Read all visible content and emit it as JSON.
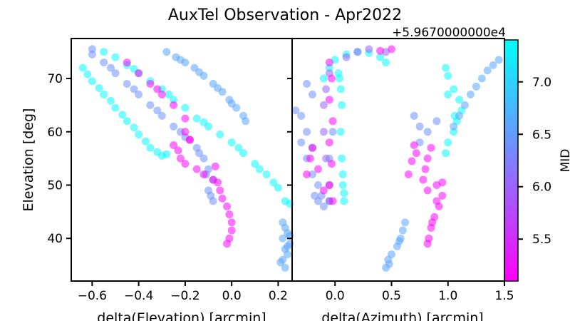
{
  "figure": {
    "title": "AuxTel Observation - Apr2022"
  },
  "chart_data": [
    {
      "type": "scatter",
      "xlabel": "delta(Elevation) [arcmin]",
      "ylabel": "Elevation [deg]",
      "xlim": [
        -0.69,
        0.26
      ],
      "ylim": [
        32,
        77.5
      ],
      "xticks": [
        -0.6,
        -0.4,
        -0.2,
        0.0,
        0.2
      ],
      "xtick_labels": [
        "−0.6",
        "−0.4",
        "−0.2",
        "0.0",
        "0.2"
      ],
      "yticks": [
        40,
        50,
        60,
        70
      ],
      "ytick_labels": [
        "40",
        "50",
        "60",
        "70"
      ],
      "series": [
        {
          "color_value": 7.35,
          "points": [
            [
              -0.64,
              72
            ],
            [
              -0.6,
              69.5
            ],
            [
              -0.55,
              67
            ],
            [
              -0.5,
              64.5
            ],
            [
              -0.45,
              62
            ],
            [
              -0.4,
              59.5
            ],
            [
              -0.35,
              57
            ],
            [
              -0.3,
              55.5
            ],
            [
              -0.62,
              70.8
            ],
            [
              -0.57,
              68.2
            ],
            [
              -0.52,
              65.8
            ],
            [
              -0.47,
              63.2
            ],
            [
              -0.42,
              60.8
            ],
            [
              -0.37,
              58.2
            ],
            [
              -0.32,
              56.2
            ],
            [
              -0.28,
              55.8
            ]
          ]
        },
        {
          "color_value": 7.35,
          "points": [
            [
              -0.55,
              75
            ],
            [
              -0.5,
              74
            ],
            [
              -0.45,
              72.5
            ],
            [
              -0.4,
              71
            ],
            [
              -0.35,
              69.5
            ],
            [
              -0.3,
              68
            ],
            [
              -0.25,
              66
            ],
            [
              -0.2,
              64.5
            ],
            [
              -0.15,
              62.5
            ],
            [
              -0.1,
              61
            ],
            [
              -0.05,
              59.5
            ],
            [
              0.0,
              58
            ],
            [
              0.05,
              56
            ],
            [
              0.1,
              54
            ],
            [
              0.15,
              52
            ],
            [
              0.2,
              49.5
            ],
            [
              0.23,
              47
            ],
            [
              0.25,
              46.5
            ],
            [
              -0.42,
              71.8
            ],
            [
              -0.27,
              67
            ],
            [
              -0.12,
              61.8
            ],
            [
              0.03,
              57
            ],
            [
              0.12,
              53
            ],
            [
              0.18,
              50.5
            ]
          ]
        },
        {
          "color_value": 6.6,
          "points": [
            [
              -0.28,
              75
            ],
            [
              -0.24,
              74
            ],
            [
              -0.2,
              73
            ],
            [
              -0.16,
              72
            ],
            [
              -0.12,
              70.5
            ],
            [
              -0.08,
              69
            ],
            [
              -0.04,
              67.5
            ],
            [
              -0.01,
              66
            ],
            [
              0.02,
              64.5
            ],
            [
              0.05,
              63
            ],
            [
              0.06,
              62
            ],
            [
              -0.22,
              73.5
            ],
            [
              -0.14,
              71.2
            ],
            [
              -0.06,
              68.2
            ],
            [
              0.0,
              65.3
            ]
          ]
        },
        {
          "color_value": 6.4,
          "points": [
            [
              -0.6,
              74.5
            ],
            [
              -0.55,
              73
            ],
            [
              -0.5,
              71
            ],
            [
              -0.45,
              69
            ],
            [
              -0.4,
              67
            ],
            [
              -0.35,
              65
            ],
            [
              -0.3,
              63
            ],
            [
              -0.25,
              61
            ],
            [
              -0.2,
              59
            ],
            [
              -0.15,
              57
            ],
            [
              -0.12,
              55
            ],
            [
              -0.1,
              53
            ],
            [
              -0.08,
              51
            ],
            [
              -0.1,
              49
            ],
            [
              -0.08,
              47
            ],
            [
              -0.6,
              75.5
            ],
            [
              -0.52,
              72
            ],
            [
              -0.42,
              68
            ],
            [
              -0.32,
              64
            ],
            [
              -0.22,
              60
            ],
            [
              -0.14,
              56
            ],
            [
              -0.11,
              52
            ],
            [
              -0.09,
              48
            ]
          ]
        },
        {
          "color_value": 6.6,
          "points": [
            [
              0.22,
              43
            ],
            [
              0.23,
              42
            ],
            [
              0.24,
              41
            ],
            [
              0.22,
              40
            ],
            [
              0.25,
              39
            ],
            [
              0.23,
              38
            ],
            [
              0.24,
              37
            ],
            [
              0.22,
              36
            ],
            [
              0.21,
              35.5
            ],
            [
              0.23,
              34.5
            ],
            [
              0.25,
              40.5
            ],
            [
              0.24,
              38.5
            ]
          ]
        },
        {
          "color_value": 5.15,
          "points": [
            [
              -0.45,
              73
            ],
            [
              -0.4,
              71
            ],
            [
              -0.35,
              69
            ],
            [
              -0.3,
              67
            ],
            [
              -0.25,
              65
            ],
            [
              -0.2,
              62.5
            ],
            [
              -0.2,
              60
            ],
            [
              -0.18,
              58.5
            ],
            [
              -0.25,
              57.5
            ],
            [
              -0.23,
              56.5
            ],
            [
              -0.22,
              55
            ],
            [
              -0.2,
              54
            ],
            [
              -0.15,
              53
            ],
            [
              -0.12,
              52
            ],
            [
              -0.08,
              51
            ],
            [
              -0.05,
              49
            ],
            [
              -0.04,
              47.5
            ],
            [
              -0.02,
              46
            ],
            [
              -0.01,
              44.5
            ],
            [
              0.0,
              43
            ],
            [
              0.0,
              41.5
            ],
            [
              -0.01,
              40
            ],
            [
              -0.02,
              39
            ],
            [
              -0.07,
              53.5
            ],
            [
              -0.06,
              50.5
            ],
            [
              -0.18,
              58.5
            ],
            [
              -0.32,
              68
            ]
          ]
        }
      ]
    },
    {
      "type": "scatter",
      "xlabel": "delta(Azimuth) [arcmin]",
      "ylabel": "",
      "xlim": [
        -0.38,
        1.5
      ],
      "ylim": [
        32,
        77.5
      ],
      "xticks": [
        0.0,
        0.5,
        1.0,
        1.5
      ],
      "xtick_labels": [
        "0.0",
        "0.5",
        "1.0",
        "1.5"
      ],
      "series": [
        {
          "color_value": 7.35,
          "points": [
            [
              -0.1,
              70
            ],
            [
              -0.05,
              72
            ],
            [
              0.0,
              73.5
            ],
            [
              0.1,
              74.5
            ],
            [
              0.2,
              75
            ],
            [
              0.3,
              74.8
            ],
            [
              0.4,
              74
            ],
            [
              0.45,
              73
            ],
            [
              0.05,
              60
            ],
            [
              0.06,
              55
            ],
            [
              0.07,
              50
            ],
            [
              0.08,
              47
            ],
            [
              0.06,
              65
            ],
            [
              0.05,
              68
            ],
            [
              0.04,
              70
            ],
            [
              0.03,
              71
            ],
            [
              0.07,
              52
            ],
            [
              0.08,
              48.5
            ]
          ]
        },
        {
          "color_value": 7.35,
          "points": [
            [
              0.98,
              72
            ],
            [
              1.0,
              70.5
            ],
            [
              1.05,
              68
            ],
            [
              1.1,
              66
            ],
            [
              1.12,
              64
            ],
            [
              1.08,
              62
            ],
            [
              1.05,
              60
            ],
            [
              1.0,
              58
            ],
            [
              0.98,
              56
            ],
            [
              1.0,
              67
            ],
            [
              1.06,
              63
            ]
          ]
        },
        {
          "color_value": 6.6,
          "points": [
            [
              1.05,
              61
            ],
            [
              1.1,
              63
            ],
            [
              1.15,
              65
            ],
            [
              1.2,
              67
            ],
            [
              1.25,
              68.5
            ],
            [
              1.3,
              70
            ],
            [
              1.35,
              71.5
            ],
            [
              1.4,
              72.5
            ],
            [
              1.45,
              73.5
            ],
            [
              1.5,
              74
            ]
          ]
        },
        {
          "color_value": 6.6,
          "points": [
            [
              0.45,
              34.5
            ],
            [
              0.47,
              36
            ],
            [
              0.5,
              37
            ],
            [
              0.55,
              38.5
            ],
            [
              0.58,
              40
            ],
            [
              0.6,
              41.5
            ],
            [
              0.62,
              43
            ],
            [
              0.48,
              35.2
            ],
            [
              0.57,
              39.5
            ]
          ]
        },
        {
          "color_value": 6.4,
          "points": [
            [
              -0.35,
              64
            ],
            [
              -0.3,
              63
            ],
            [
              -0.25,
              60
            ],
            [
              -0.3,
              58
            ],
            [
              -0.2,
              57
            ],
            [
              -0.25,
              55
            ],
            [
              -0.2,
              52
            ],
            [
              -0.15,
              50
            ],
            [
              -0.18,
              48
            ],
            [
              -0.12,
              48
            ],
            [
              -0.1,
              46
            ],
            [
              -0.15,
              47
            ],
            [
              -0.05,
              47
            ],
            [
              0.7,
              63
            ],
            [
              0.75,
              61
            ],
            [
              0.82,
              60
            ],
            [
              0.9,
              62
            ],
            [
              0.75,
              58
            ],
            [
              -0.25,
              69
            ],
            [
              -0.2,
              67
            ],
            [
              -0.05,
              55
            ],
            [
              -0.02,
              60
            ]
          ]
        },
        {
          "color_value": 6.0,
          "points": [
            [
              0.1,
              74
            ],
            [
              0.2,
              75
            ],
            [
              0.3,
              75.5
            ],
            [
              0.45,
              75
            ],
            [
              -0.05,
              71
            ],
            [
              -0.08,
              68
            ],
            [
              -0.1,
              65
            ],
            [
              -0.1,
              60
            ],
            [
              -0.08,
              55
            ],
            [
              -0.05,
              50
            ],
            [
              -0.05,
              47
            ]
          ]
        },
        {
          "color_value": 5.15,
          "points": [
            [
              -0.05,
              73
            ],
            [
              -0.03,
              70
            ],
            [
              -0.05,
              66
            ],
            [
              -0.02,
              62
            ],
            [
              -0.05,
              58
            ],
            [
              -0.03,
              54
            ],
            [
              -0.05,
              50
            ],
            [
              -0.02,
              47
            ],
            [
              -0.2,
              57
            ],
            [
              -0.22,
              55
            ],
            [
              -0.15,
              53
            ],
            [
              -0.25,
              52
            ],
            [
              -0.1,
              49
            ],
            [
              0.7,
              57.5
            ],
            [
              0.72,
              56
            ],
            [
              0.68,
              54.5
            ],
            [
              0.65,
              52
            ],
            [
              0.85,
              57
            ],
            [
              0.82,
              55
            ],
            [
              0.8,
              53
            ],
            [
              0.78,
              51
            ],
            [
              0.82,
              49
            ],
            [
              0.9,
              50
            ],
            [
              0.95,
              48
            ],
            [
              0.92,
              46
            ],
            [
              0.88,
              44
            ],
            [
              0.85,
              42
            ],
            [
              0.83,
              40
            ],
            [
              0.82,
              39
            ],
            [
              0.95,
              50.5
            ],
            [
              0.9,
              47
            ],
            [
              0.86,
              43
            ],
            [
              0.5,
              75.5
            ],
            [
              0.4,
              75.2
            ]
          ]
        }
      ]
    }
  ],
  "colorbar": {
    "label": "MID",
    "offset_label": "+5.9670000000e4",
    "min": 5.1,
    "max": 7.4,
    "ticks": [
      5.5,
      6.0,
      6.5,
      7.0
    ],
    "tick_labels": [
      "5.5",
      "6.0",
      "6.5",
      "7.0"
    ],
    "colormap": "cool_reversed"
  }
}
